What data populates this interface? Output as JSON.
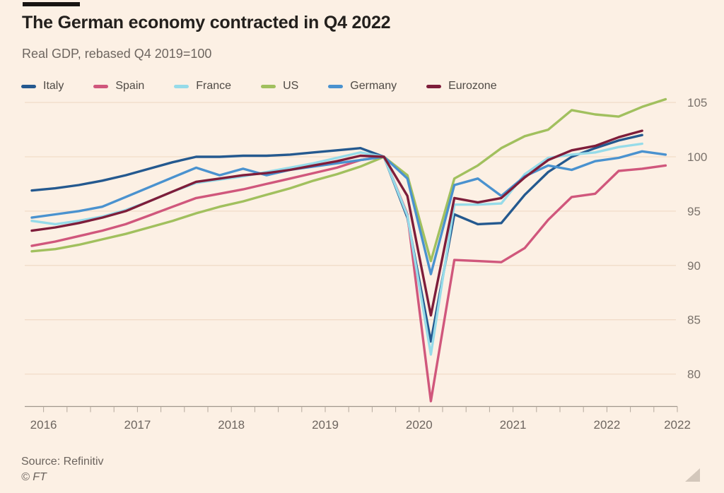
{
  "header": {
    "title": "The German economy contracted in Q4 2022",
    "subtitle": "Real GDP, rebased Q4 2019=100"
  },
  "footer": {
    "source": "Source: Refinitiv",
    "copyright": "© FT"
  },
  "colors": {
    "background": "#fcf0e4",
    "title": "#23201d",
    "subtitle": "#6e6660",
    "grid": "#f1dcc8",
    "axis": "#a1978c",
    "tick_label": "#7b736c"
  },
  "chart_data": {
    "type": "line",
    "title": "The German economy contracted in Q4 2022",
    "subtitle": "Real GDP, rebased Q4 2019=100",
    "x_unit": "quarter",
    "grid": "horizontal",
    "legend_position": "top",
    "ylim": [
      77,
      106
    ],
    "y_ticks": [
      80,
      85,
      90,
      95,
      100,
      105
    ],
    "x_tick_labels": [
      "2016",
      "2017",
      "2018",
      "2019",
      "2020",
      "2021",
      "2022",
      "2022"
    ],
    "x_tick_label_indices": [
      0,
      4,
      8,
      12,
      16,
      20,
      24,
      27
    ],
    "categories": [
      "2016 Q1",
      "2016 Q2",
      "2016 Q3",
      "2016 Q4",
      "2017 Q1",
      "2017 Q2",
      "2017 Q3",
      "2017 Q4",
      "2018 Q1",
      "2018 Q2",
      "2018 Q3",
      "2018 Q4",
      "2019 Q1",
      "2019 Q2",
      "2019 Q3",
      "2019 Q4",
      "2020 Q1",
      "2020 Q2",
      "2020 Q3",
      "2020 Q4",
      "2021 Q1",
      "2021 Q2",
      "2021 Q3",
      "2021 Q4",
      "2022 Q1",
      "2022 Q2",
      "2022 Q3",
      "2022 Q4"
    ],
    "series": [
      {
        "name": "Italy",
        "color": "#24598f",
        "values": [
          96.9,
          97.1,
          97.4,
          97.8,
          98.3,
          98.9,
          99.5,
          100.0,
          100.0,
          100.1,
          100.1,
          100.2,
          100.4,
          100.6,
          100.8,
          100.0,
          94.4,
          83.0,
          94.7,
          93.8,
          93.9,
          96.5,
          98.6,
          100.0,
          100.8,
          101.5,
          102.0,
          null
        ]
      },
      {
        "name": "Spain",
        "color": "#d0577c",
        "values": [
          91.8,
          92.2,
          92.7,
          93.2,
          93.8,
          94.6,
          95.4,
          96.2,
          96.6,
          97.0,
          97.5,
          98.0,
          98.5,
          99.0,
          99.7,
          100.0,
          94.7,
          77.5,
          90.5,
          90.4,
          90.3,
          91.6,
          94.2,
          96.3,
          96.6,
          98.7,
          98.9,
          99.2
        ]
      },
      {
        "name": "France",
        "color": "#96dbe9",
        "values": [
          94.1,
          93.8,
          94.1,
          94.5,
          95.1,
          95.9,
          96.8,
          97.6,
          97.9,
          98.2,
          98.6,
          99.0,
          99.4,
          99.9,
          100.4,
          100.0,
          94.6,
          81.8,
          95.6,
          95.6,
          95.7,
          98.4,
          99.9,
          100.2,
          100.4,
          100.9,
          101.2,
          null
        ]
      },
      {
        "name": "US",
        "color": "#a1c05e",
        "values": [
          91.3,
          91.5,
          91.9,
          92.4,
          92.9,
          93.5,
          94.1,
          94.8,
          95.4,
          95.9,
          96.5,
          97.1,
          97.8,
          98.4,
          99.1,
          100.0,
          98.3,
          90.4,
          98.0,
          99.2,
          100.8,
          101.9,
          102.5,
          104.3,
          103.9,
          103.7,
          104.6,
          105.3
        ]
      },
      {
        "name": "Germany",
        "color": "#4a92cf",
        "values": [
          94.4,
          94.7,
          95.0,
          95.4,
          96.3,
          97.2,
          98.1,
          99.0,
          98.3,
          98.9,
          98.3,
          98.8,
          99.1,
          99.4,
          99.7,
          100.0,
          98.0,
          89.2,
          97.4,
          98.0,
          96.4,
          98.2,
          99.2,
          98.8,
          99.6,
          99.9,
          100.5,
          100.2
        ]
      },
      {
        "name": "Eurozone",
        "color": "#7e1d3a",
        "values": [
          93.2,
          93.5,
          93.9,
          94.4,
          95.0,
          95.9,
          96.8,
          97.7,
          98.0,
          98.3,
          98.5,
          98.8,
          99.2,
          99.6,
          100.1,
          100.0,
          96.4,
          85.4,
          96.2,
          95.8,
          96.2,
          98.1,
          99.7,
          100.6,
          101.0,
          101.8,
          102.4,
          null
        ]
      }
    ]
  }
}
